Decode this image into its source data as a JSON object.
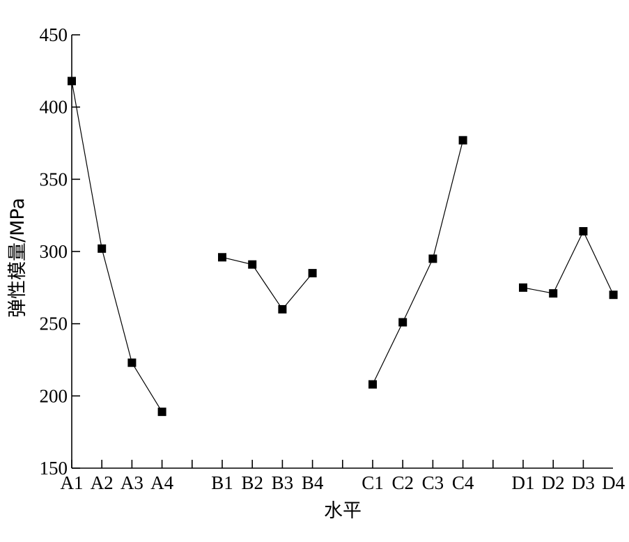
{
  "chart_data": {
    "type": "line",
    "title": "",
    "xlabel": "水平",
    "ylabel": "弹性模量/MPa",
    "ylim": [
      150,
      450
    ],
    "yticks": [
      150,
      200,
      250,
      300,
      350,
      400,
      450
    ],
    "grid": false,
    "legend": "none",
    "categories": [
      "A1",
      "A2",
      "A3",
      "A4",
      "B1",
      "B2",
      "B3",
      "B4",
      "C1",
      "C2",
      "C3",
      "C4",
      "D1",
      "D2",
      "D3",
      "D4"
    ],
    "series": [
      {
        "group": "A",
        "x": [
          "A1",
          "A2",
          "A3",
          "A4"
        ],
        "values": [
          418,
          302,
          223,
          189
        ]
      },
      {
        "group": "B",
        "x": [
          "B1",
          "B2",
          "B3",
          "B4"
        ],
        "values": [
          296,
          291,
          260,
          285
        ]
      },
      {
        "group": "C",
        "x": [
          "C1",
          "C2",
          "C3",
          "C4"
        ],
        "values": [
          208,
          251,
          295,
          377
        ]
      },
      {
        "group": "D",
        "x": [
          "D1",
          "D2",
          "D3",
          "D4"
        ],
        "values": [
          275,
          271,
          314,
          270
        ]
      }
    ],
    "marker": "square",
    "color": "#000000"
  }
}
